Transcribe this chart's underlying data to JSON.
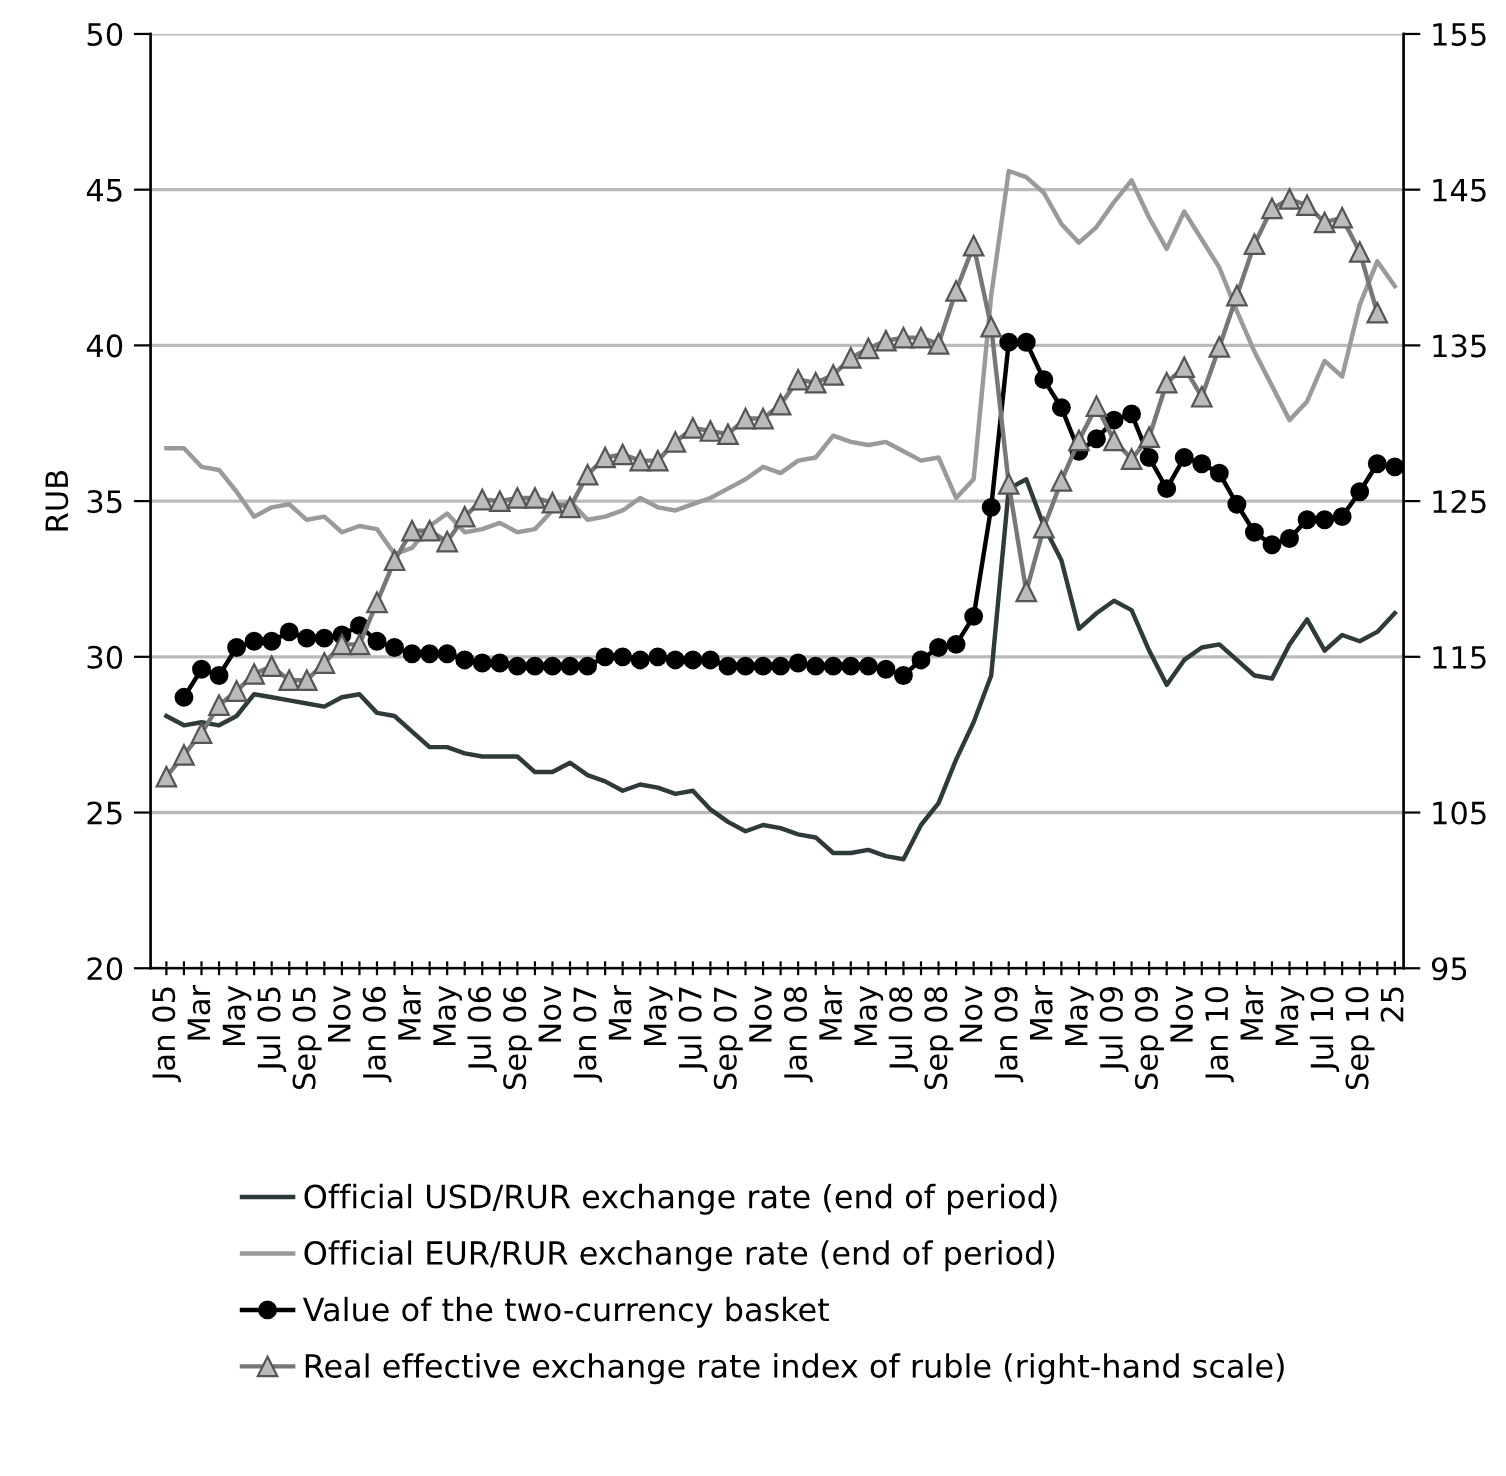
{
  "chart_data": {
    "type": "line",
    "ylabel": "RUB",
    "categories": [
      "Jan 05",
      null,
      "Mar",
      null,
      "May",
      null,
      "Jul 05",
      null,
      "Sep 05",
      null,
      "Nov",
      null,
      "Jan 06",
      null,
      "Mar",
      null,
      "May",
      null,
      "Jul 06",
      null,
      "Sep 06",
      null,
      "Nov",
      null,
      "Jan 07",
      null,
      "Mar",
      null,
      "May",
      null,
      "Jul 07",
      null,
      "Sep 07",
      null,
      "Nov",
      null,
      "Jan 08",
      null,
      "Mar",
      null,
      "May",
      null,
      "Jul 08",
      null,
      "Sep 08",
      null,
      "Nov",
      null,
      "Jan 09",
      null,
      "Mar",
      null,
      "May",
      null,
      "Jul 09",
      null,
      "Sep 09",
      null,
      "Nov",
      null,
      "Jan 10",
      null,
      "Mar",
      null,
      "May",
      null,
      "Jul 10",
      null,
      "Sep 10",
      null,
      "25"
    ],
    "series": [
      {
        "name": "Official USD/RUR exchange rate (end of period)",
        "color": "#2f3b3b",
        "marker": "none",
        "values": [
          28.1,
          27.8,
          27.9,
          27.8,
          28.1,
          28.8,
          28.7,
          28.6,
          28.5,
          28.4,
          28.7,
          28.8,
          28.2,
          28.1,
          27.6,
          27.1,
          27.1,
          26.9,
          26.8,
          26.8,
          26.8,
          26.3,
          26.3,
          26.6,
          26.2,
          26.0,
          25.7,
          25.9,
          25.8,
          25.6,
          25.7,
          25.1,
          24.7,
          24.4,
          24.6,
          24.5,
          24.3,
          24.2,
          23.7,
          23.7,
          23.8,
          23.6,
          23.5,
          24.6,
          25.3,
          26.7,
          27.9,
          29.4,
          35.4,
          35.7,
          34.2,
          33.1,
          30.9,
          31.4,
          31.8,
          31.5,
          30.2,
          29.1,
          29.9,
          30.3,
          30.4,
          29.9,
          29.4,
          29.3,
          30.4,
          31.2,
          30.2,
          30.7,
          30.5,
          30.8,
          31.4
        ]
      },
      {
        "name": "Official EUR/RUR exchange rate (end of period)",
        "color": "#9a9a9a",
        "marker": "none",
        "values": [
          36.7,
          36.7,
          36.1,
          36.0,
          35.3,
          34.5,
          34.8,
          34.9,
          34.4,
          34.5,
          34.0,
          34.2,
          34.1,
          33.3,
          33.5,
          34.2,
          34.6,
          34.0,
          34.1,
          34.3,
          34.0,
          34.1,
          34.7,
          35.0,
          34.4,
          34.5,
          34.7,
          35.1,
          34.8,
          34.7,
          34.9,
          35.1,
          35.4,
          35.7,
          36.1,
          35.9,
          36.3,
          36.4,
          37.1,
          36.9,
          36.8,
          36.9,
          36.6,
          36.3,
          36.4,
          35.1,
          35.7,
          41.6,
          45.6,
          45.4,
          44.9,
          43.9,
          43.3,
          43.8,
          44.6,
          45.3,
          44.1,
          43.1,
          44.3,
          43.4,
          42.5,
          41.1,
          39.8,
          38.7,
          37.6,
          38.2,
          39.5,
          39.0,
          41.3,
          42.7,
          41.9
        ]
      },
      {
        "name": "Value of the two-currency basket",
        "color": "#000000",
        "marker": "circle",
        "values": [
          null,
          28.7,
          29.6,
          29.4,
          30.3,
          30.5,
          30.5,
          30.8,
          30.6,
          30.6,
          30.7,
          31.0,
          30.5,
          30.3,
          30.1,
          30.1,
          30.1,
          29.9,
          29.8,
          29.8,
          29.7,
          29.7,
          29.7,
          29.7,
          29.7,
          30.0,
          30.0,
          29.9,
          30.0,
          29.9,
          29.9,
          29.9,
          29.7,
          29.7,
          29.7,
          29.7,
          29.8,
          29.7,
          29.7,
          29.7,
          29.7,
          29.6,
          29.4,
          29.9,
          30.3,
          30.4,
          31.3,
          34.8,
          40.1,
          40.1,
          38.9,
          38.0,
          36.6,
          37.0,
          37.6,
          37.8,
          36.4,
          35.4,
          36.4,
          36.2,
          35.9,
          34.9,
          34.0,
          33.6,
          33.8,
          34.4,
          34.4,
          34.5,
          35.3,
          36.2,
          36.1
        ]
      },
      {
        "name": "Real effective exchange rate index of ruble (right-hand scale)",
        "color": "#777777",
        "marker": "triangle",
        "axis": "y2",
        "values": [
          107.3,
          108.7,
          110.1,
          111.9,
          112.8,
          113.9,
          114.4,
          113.5,
          113.5,
          114.6,
          115.8,
          115.8,
          118.5,
          121.2,
          123.1,
          123.1,
          122.4,
          124.0,
          125.1,
          125.0,
          125.2,
          125.2,
          124.9,
          124.6,
          126.7,
          127.8,
          128.0,
          127.6,
          127.6,
          128.8,
          129.7,
          129.5,
          129.3,
          130.3,
          130.3,
          131.2,
          132.8,
          132.6,
          133.1,
          134.2,
          134.8,
          135.3,
          135.5,
          135.5,
          135.1,
          138.5,
          141.4,
          136.2,
          126.1,
          119.2,
          123.3,
          126.3,
          128.9,
          131.1,
          128.9,
          127.7,
          129.1,
          132.6,
          133.6,
          131.7,
          134.9,
          138.2,
          141.5,
          143.8,
          144.4,
          144.0,
          142.9,
          143.2,
          141.0,
          137.1,
          null
        ]
      }
    ],
    "ylim": [
      20,
      50
    ],
    "yticks": [
      20,
      25,
      30,
      35,
      40,
      45,
      50
    ],
    "y2lim": [
      95,
      155
    ],
    "y2ticks": [
      95,
      105,
      115,
      125,
      135,
      145,
      155
    ],
    "grid": "y",
    "legend": "bottom left",
    "line_style": "solid"
  }
}
